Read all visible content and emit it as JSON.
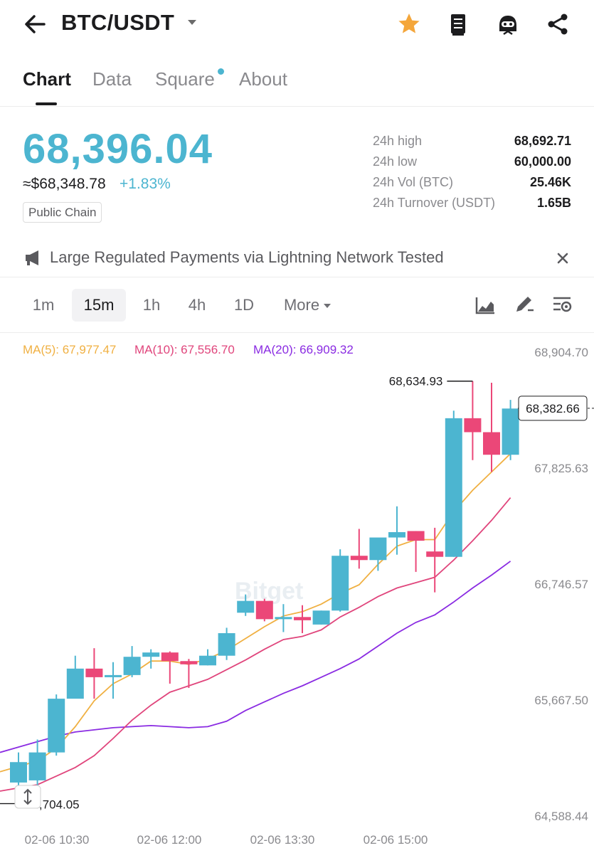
{
  "header": {
    "pair": "BTC/USDT"
  },
  "tabs": [
    "Chart",
    "Data",
    "Square",
    "About"
  ],
  "ticker": {
    "last_price": "68,396.04",
    "fiat_price": "≈$68,348.78",
    "change_pct": "+1.83%",
    "badge": "Public Chain",
    "stats": [
      {
        "label": "24h high",
        "value": "68,692.71"
      },
      {
        "label": "24h low",
        "value": "60,000.00"
      },
      {
        "label": "24h Vol (BTC)",
        "value": "25.46K"
      },
      {
        "label": "24h Turnover (USDT)",
        "value": "1.65B"
      }
    ]
  },
  "news": {
    "headline": "Large Regulated Payments via Lightning Network Tested"
  },
  "intervals": {
    "items": [
      "1m",
      "15m",
      "1h",
      "4h",
      "1D"
    ],
    "selected": "15m",
    "more_label": "More"
  },
  "legend": {
    "ma5": "MA(5): 67,977.47",
    "ma10": "MA(10): 67,556.70",
    "ma20": "MA(20): 66,909.32"
  },
  "colors": {
    "up": "#4cb5d0",
    "down": "#eb4778",
    "ma5": "#f0b042",
    "ma10": "#e0457c",
    "ma20": "#8a2be2"
  },
  "chart_data": {
    "type": "candlestick",
    "y_axis_labels": [
      "68,904.70",
      "67,825.63",
      "66,746.57",
      "65,667.50",
      "64,588.44"
    ],
    "ylim": [
      64588.44,
      68904.7
    ],
    "x_axis_labels": [
      "02-06 10:30",
      "02-06 12:00",
      "02-06 13:30",
      "02-06 15:00"
    ],
    "last_price_tag": "68,382.66",
    "high_annotation": "68,634.93",
    "low_annotation": "64,704.05",
    "candles": [
      {
        "o": 64900,
        "h": 65180,
        "l": 64680,
        "c": 65090
      },
      {
        "o": 64920,
        "h": 65300,
        "l": 64760,
        "c": 65180
      },
      {
        "o": 65180,
        "h": 65720,
        "l": 65150,
        "c": 65680
      },
      {
        "o": 65680,
        "h": 66080,
        "l": 65700,
        "c": 65960
      },
      {
        "o": 65960,
        "h": 66150,
        "l": 65680,
        "c": 65880
      },
      {
        "o": 65880,
        "h": 66020,
        "l": 65680,
        "c": 65900
      },
      {
        "o": 65900,
        "h": 66170,
        "l": 65880,
        "c": 66070
      },
      {
        "o": 66070,
        "h": 66140,
        "l": 65960,
        "c": 66110
      },
      {
        "o": 66110,
        "h": 66120,
        "l": 65820,
        "c": 66030
      },
      {
        "o": 66030,
        "h": 66050,
        "l": 65780,
        "c": 66000
      },
      {
        "o": 65990,
        "h": 66140,
        "l": 65990,
        "c": 66080
      },
      {
        "o": 66080,
        "h": 66340,
        "l": 66040,
        "c": 66290
      },
      {
        "o": 66480,
        "h": 66650,
        "l": 66450,
        "c": 66590
      },
      {
        "o": 66590,
        "h": 66610,
        "l": 66400,
        "c": 66420
      },
      {
        "o": 66420,
        "h": 66560,
        "l": 66300,
        "c": 66440
      },
      {
        "o": 66440,
        "h": 66550,
        "l": 66290,
        "c": 66410
      },
      {
        "o": 66370,
        "h": 66500,
        "l": 66370,
        "c": 66500
      },
      {
        "o": 66500,
        "h": 67070,
        "l": 66490,
        "c": 67010
      },
      {
        "o": 67010,
        "h": 67260,
        "l": 66890,
        "c": 66970
      },
      {
        "o": 66970,
        "h": 67140,
        "l": 66870,
        "c": 67180
      },
      {
        "o": 67180,
        "h": 67470,
        "l": 67020,
        "c": 67230
      },
      {
        "o": 67240,
        "h": 67240,
        "l": 66860,
        "c": 67150
      },
      {
        "o": 67050,
        "h": 67270,
        "l": 66670,
        "c": 67000
      },
      {
        "o": 67000,
        "h": 68360,
        "l": 67000,
        "c": 68290
      },
      {
        "o": 68290,
        "h": 68635,
        "l": 67900,
        "c": 68160
      },
      {
        "o": 68160,
        "h": 68620,
        "l": 67790,
        "c": 67950
      },
      {
        "o": 67950,
        "h": 68460,
        "l": 67900,
        "c": 68380
      }
    ],
    "ma5": [
      65050,
      65100,
      65220,
      65420,
      65660,
      65820,
      65910,
      66030,
      66030,
      66000,
      66050,
      66130,
      66240,
      66350,
      66450,
      66490,
      66560,
      66660,
      66740,
      66930,
      67100,
      67160,
      67160,
      67420,
      67620,
      67790,
      67960
    ],
    "ma10": [
      64850,
      64880,
      64960,
      65040,
      65150,
      65310,
      65480,
      65620,
      65740,
      65800,
      65860,
      65950,
      66040,
      66140,
      66230,
      66260,
      66320,
      66440,
      66530,
      66630,
      66710,
      66760,
      66810,
      66970,
      67150,
      67340,
      67550
    ],
    "ma20": [
      65230,
      65280,
      65330,
      65370,
      65390,
      65410,
      65420,
      65430,
      65420,
      65410,
      65420,
      65470,
      65570,
      65650,
      65730,
      65800,
      65880,
      65960,
      66050,
      66170,
      66290,
      66390,
      66460,
      66580,
      66710,
      66830,
      66960
    ]
  }
}
